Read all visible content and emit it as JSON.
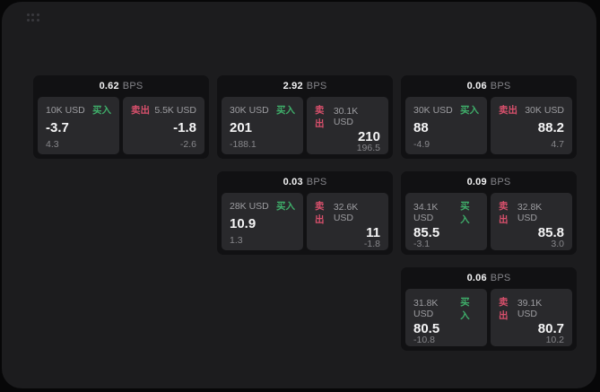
{
  "page": {
    "background": "#070708",
    "panel_background": "#1c1c1e",
    "card_background": "#111113",
    "pane_background": "#29292c"
  },
  "colors": {
    "buy_green": "#3fae6a",
    "sell_red": "#d8506c",
    "value_white": "#f5f5f6",
    "muted_gray": "#87878b"
  },
  "labels": {
    "bps": "BPS",
    "buy": "买入",
    "sell": "卖出"
  },
  "cards": [
    {
      "col": 1,
      "row": 1,
      "bps": "0.62",
      "buy": {
        "size": "10K USD",
        "price": "-3.7",
        "delta": "4.3"
      },
      "sell": {
        "size": "5.5K USD",
        "price": "-1.8",
        "delta": "-2.6"
      }
    },
    {
      "col": 2,
      "row": 1,
      "bps": "2.92",
      "buy": {
        "size": "30K USD",
        "price": "201",
        "delta": "-188.1"
      },
      "sell": {
        "size": "30.1K USD",
        "price": "210",
        "delta": "196.5"
      }
    },
    {
      "col": 3,
      "row": 1,
      "bps": "0.06",
      "buy": {
        "size": "30K USD",
        "price": "88",
        "delta": "-4.9"
      },
      "sell": {
        "size": "30K USD",
        "price": "88.2",
        "delta": "4.7"
      }
    },
    {
      "col": 2,
      "row": 2,
      "bps": "0.03",
      "buy": {
        "size": "28K USD",
        "price": "10.9",
        "delta": "1.3"
      },
      "sell": {
        "size": "32.6K USD",
        "price": "11",
        "delta": "-1.8"
      }
    },
    {
      "col": 3,
      "row": 2,
      "bps": "0.09",
      "buy": {
        "size": "34.1K USD",
        "price": "85.5",
        "delta": "-3.1"
      },
      "sell": {
        "size": "32.8K USD",
        "price": "85.8",
        "delta": "3.0"
      }
    },
    {
      "col": 3,
      "row": 3,
      "bps": "0.06",
      "buy": {
        "size": "31.8K USD",
        "price": "80.5",
        "delta": "-10.8"
      },
      "sell": {
        "size": "39.1K USD",
        "price": "80.7",
        "delta": "10.2"
      }
    }
  ]
}
